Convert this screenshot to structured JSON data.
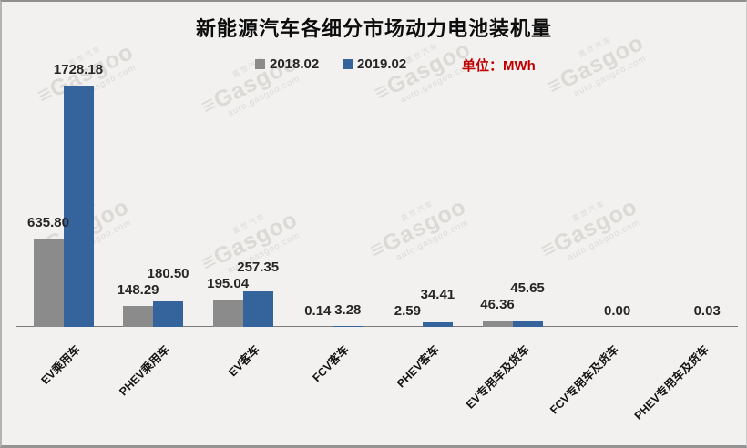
{
  "title": "新能源汽车各细分市场动力电池装机量",
  "unit_label": "单位：MWh",
  "legend": {
    "items": [
      {
        "label": "2018.02",
        "color": "#8b8b8b"
      },
      {
        "label": "2019.02",
        "color": "#35639b"
      }
    ]
  },
  "watermark": {
    "logo": "≡",
    "brand": "Gasgoo",
    "cn": "盖世汽车",
    "site": "auto.gasgoo.com"
  },
  "colors": {
    "background": "#f2f1f0",
    "bar_2018": "#8b8b8b",
    "bar_2019": "#35639b",
    "axis": "#7a7a7a",
    "unit_text": "#c00000"
  },
  "chart_data": {
    "type": "bar",
    "title": "新能源汽车各细分市场动力电池装机量",
    "unit": "MWh",
    "categories": [
      "EV乘用车",
      "PHEV乘用车",
      "EV客车",
      "FCV客车",
      "PHEV客车",
      "EV专用车及货车",
      "FCV专用车及货车",
      "PHEV专用车及货车"
    ],
    "series": [
      {
        "name": "2018.02",
        "color": "#8b8b8b",
        "values": [
          635.8,
          148.29,
          195.04,
          0.14,
          2.59,
          46.36,
          null,
          null
        ],
        "labels": [
          "635.80",
          "148.29",
          "195.04",
          "0.14",
          "2.59",
          "46.36",
          "",
          ""
        ]
      },
      {
        "name": "2019.02",
        "color": "#35639b",
        "values": [
          1728.18,
          180.5,
          257.35,
          3.28,
          34.41,
          45.65,
          0.0,
          0.03
        ],
        "labels": [
          "1728.18",
          "180.50",
          "257.35",
          "3.28",
          "34.41",
          "45.65",
          "0.00",
          "0.03"
        ]
      }
    ],
    "ylim": [
      0,
      1800
    ],
    "value_axis_hidden": true,
    "grid": false,
    "legend_position": "top"
  }
}
